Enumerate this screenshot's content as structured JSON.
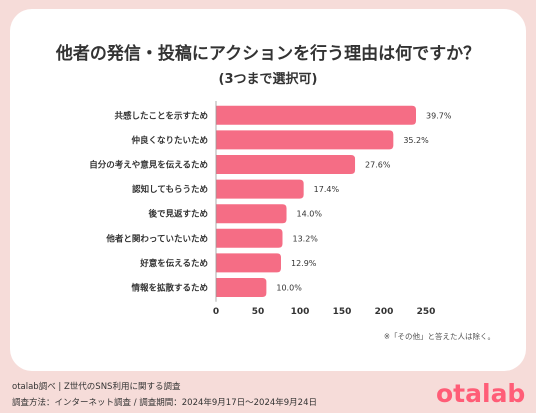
{
  "header": {
    "title": "他者の発信・投稿にアクションを行う理由は何ですか？",
    "subtitle": "(3つまで選択可)"
  },
  "chart_data": {
    "type": "bar",
    "orientation": "horizontal",
    "categories": [
      "共感したことを示すため",
      "仲良くなりたいため",
      "自分の考えや意見を伝えるため",
      "認知してもらうため",
      "後で見返すため",
      "他者と関わっていたいため",
      "好意を伝えるため",
      "情報を拡散するため"
    ],
    "values": [
      39.7,
      35.2,
      27.6,
      17.4,
      14.0,
      13.2,
      12.9,
      10.0
    ],
    "value_labels": [
      "39.7%",
      "35.2%",
      "27.6%",
      "17.4%",
      "14.0%",
      "13.2%",
      "12.9%",
      "10.0%"
    ],
    "ticks": [
      "0",
      "50",
      "100",
      "150",
      "200",
      "250"
    ],
    "xlim": [
      0,
      250
    ],
    "grid": false,
    "bar_color": "#f56d85",
    "note": "※「その他」と答えた人は除く。"
  },
  "footer": {
    "line1": "otalab調べ | Z世代のSNS利用に関する調査",
    "line2": "調査方法：インターネット調査 / 調査期間：2024年9月17日〜2024年9月24日",
    "logo": "otalab"
  }
}
